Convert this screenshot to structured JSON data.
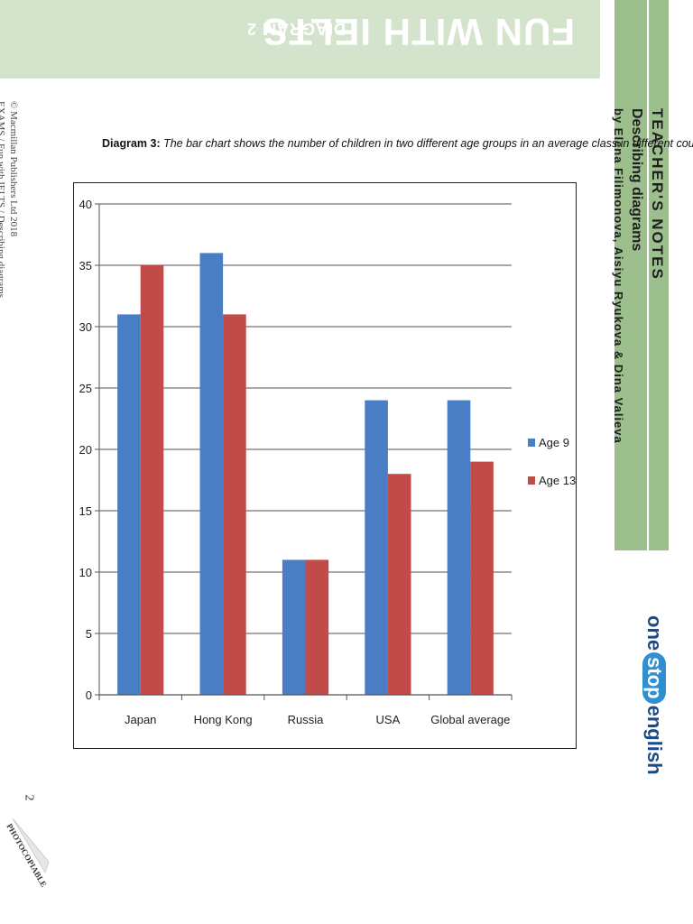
{
  "banner": {
    "title": "FUN WITH IELTS",
    "subtitle": "DIAGRAM 2",
    "background": "#d4e3cc"
  },
  "sidebar": {
    "section": "TEACHER'S NOTES",
    "topic": "Describing diagrams",
    "authors": "by Elena Filimonova, Aisiyu Ryukova & Dina Valieva"
  },
  "logo": {
    "word1": "one",
    "word2": "stop",
    "word3": "english"
  },
  "copyright": {
    "line1": "© Macmillan Publishers Ltd 2018",
    "line2": "EXAMS / Fun with IELTS / Describing diagrams"
  },
  "page_number": "2",
  "photocopiable": "PHOTOCOPIABLE",
  "caption": {
    "label": "Diagram 3:",
    "text": "The bar chart shows the number of children in two different age groups in an average class in different countries."
  },
  "chart_data": {
    "type": "bar",
    "title": "",
    "xlabel": "",
    "ylabel": "",
    "categories": [
      "Japan",
      "Hong Kong",
      "Russia",
      "USA",
      "Global average"
    ],
    "series": [
      {
        "name": "Age 9",
        "color": "#4a7ec4",
        "values": [
          31,
          36,
          11,
          24,
          24
        ]
      },
      {
        "name": "Age 13",
        "color": "#c04b48",
        "values": [
          35,
          31,
          11,
          18,
          19
        ]
      }
    ],
    "ylim": [
      0,
      40
    ],
    "yticks": [
      0,
      5,
      10,
      15,
      20,
      25,
      30,
      35,
      40
    ],
    "grid": true,
    "legend": "right"
  }
}
